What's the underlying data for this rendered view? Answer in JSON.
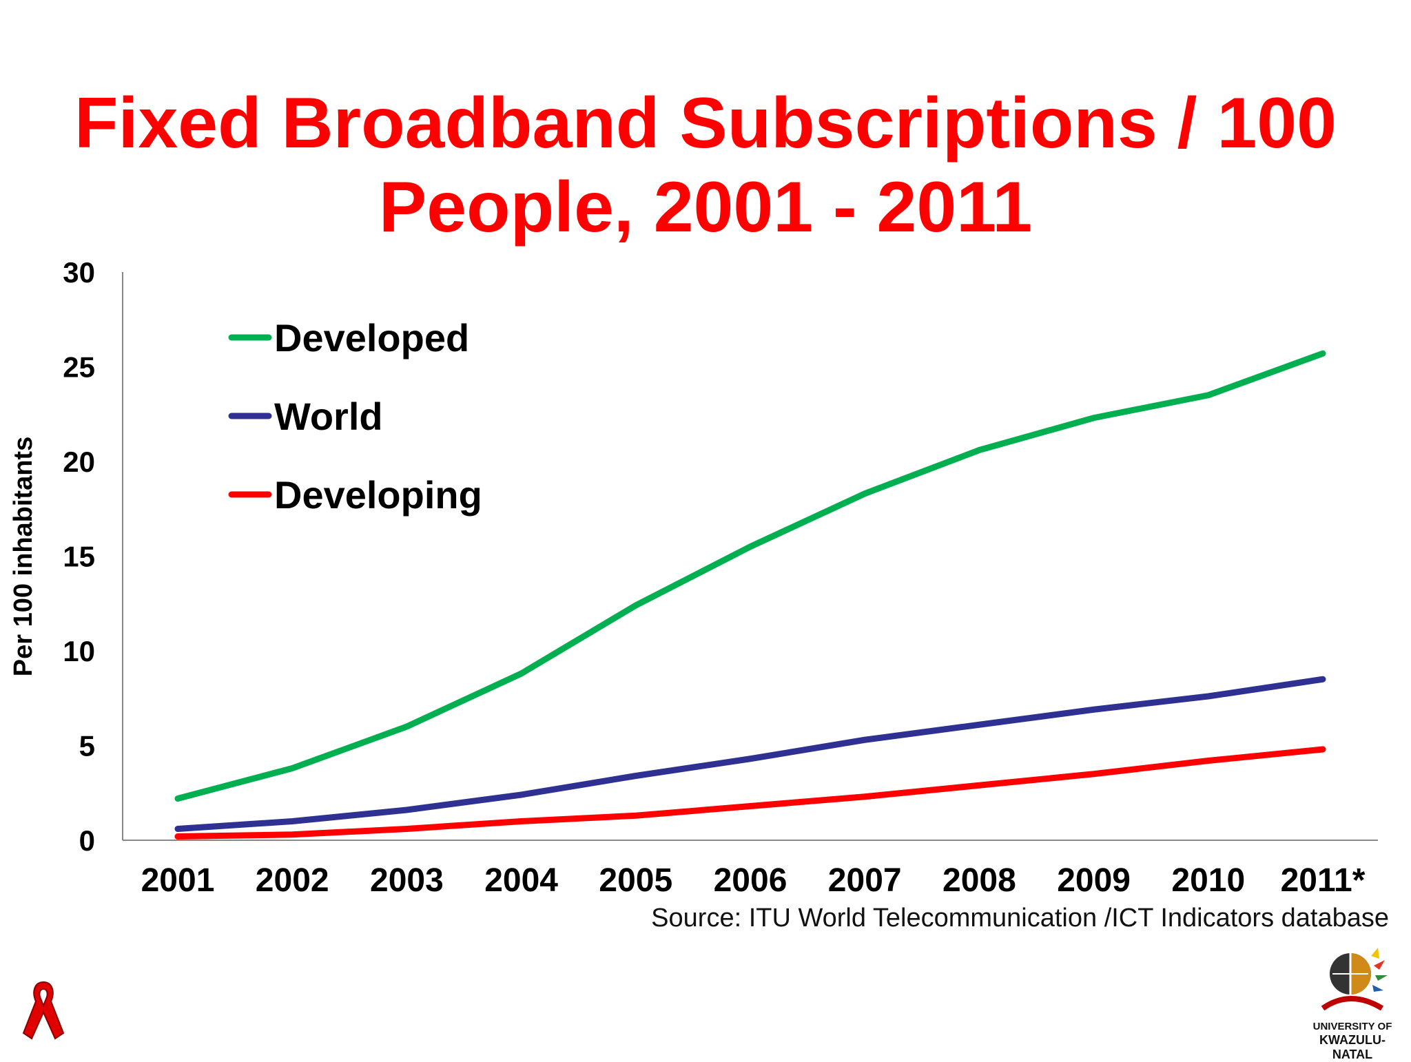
{
  "title": {
    "line1": "Fixed Broadband Subscriptions / 100",
    "line2": "People, 2001 - 2011"
  },
  "source": "Source:  ITU World Telecommunication /ICT Indicators database",
  "logo": {
    "line1": "UNIVERSITY OF",
    "line2": "KWAZULU-NATAL"
  },
  "icons": [
    "awareness-ribbon-icon",
    "university-crest-icon"
  ],
  "chart_data": {
    "type": "line",
    "title": "Fixed Broadband Subscriptions / 100 People, 2001 - 2011",
    "xlabel": "",
    "ylabel": "Per 100 inhabitants",
    "categories": [
      "2001",
      "2002",
      "2003",
      "2004",
      "2005",
      "2006",
      "2007",
      "2008",
      "2009",
      "2010",
      "2011*"
    ],
    "ylim": [
      0,
      30
    ],
    "yticks": [
      0,
      5,
      10,
      15,
      20,
      25,
      30
    ],
    "grid": false,
    "legend_position": "top-left",
    "series": [
      {
        "name": "Developed",
        "color": "#00b050",
        "values": [
          2.2,
          3.8,
          6.0,
          8.8,
          12.4,
          15.5,
          18.3,
          20.6,
          22.3,
          23.5,
          25.7
        ]
      },
      {
        "name": "World",
        "color": "#2e3192",
        "values": [
          0.6,
          1.0,
          1.6,
          2.4,
          3.4,
          4.3,
          5.3,
          6.1,
          6.9,
          7.6,
          8.5
        ]
      },
      {
        "name": "Developing",
        "color": "#ff0000",
        "values": [
          0.2,
          0.3,
          0.6,
          1.0,
          1.3,
          1.8,
          2.3,
          2.9,
          3.5,
          4.2,
          4.8
        ]
      }
    ]
  }
}
